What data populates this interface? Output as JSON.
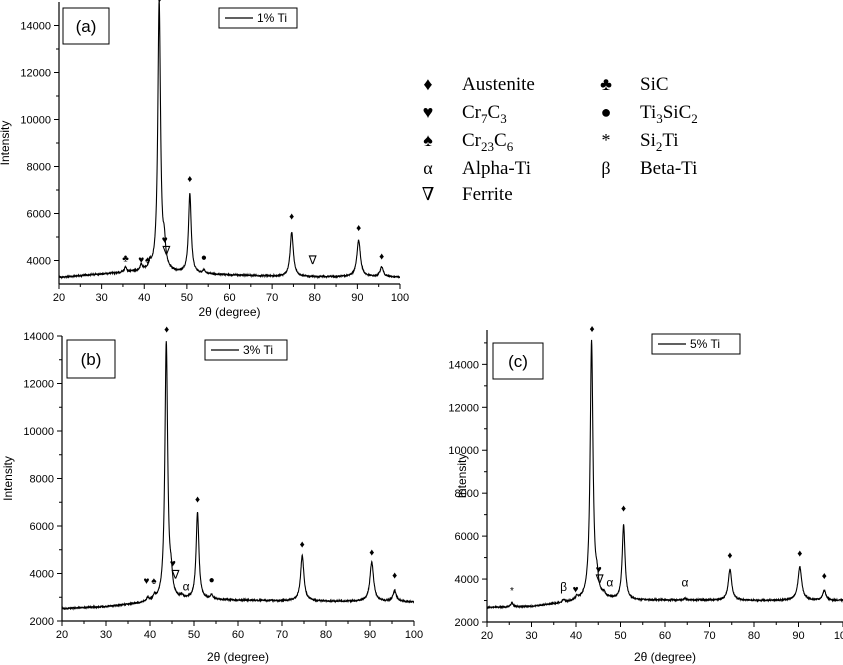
{
  "legend_key": {
    "entries": [
      {
        "symbol": "♦",
        "label": "Austenite"
      },
      {
        "symbol": "♣",
        "label": "SiC"
      },
      {
        "symbol": "♥",
        "label": "Cr",
        "sub1": "7",
        "label2": "C",
        "sub2": "3"
      },
      {
        "symbol": "●",
        "label": "Ti",
        "sub1": "3",
        "label2": "SiC",
        "sub2": "2"
      },
      {
        "symbol": "♠",
        "label": "Cr",
        "sub1": "23",
        "label2": "C",
        "sub2": "6"
      },
      {
        "symbol": "*",
        "label": "Si",
        "sub1": "2",
        "label2": "Ti",
        "sub2": ""
      },
      {
        "symbol": "α",
        "label": "Alpha-Ti"
      },
      {
        "symbol": "β",
        "label": "Beta-Ti"
      },
      {
        "symbol": "∇",
        "label": "Ferrite"
      }
    ]
  },
  "chart_data": [
    {
      "type": "line",
      "panel_label": "(a)",
      "series": [
        {
          "name": "1% Ti"
        }
      ],
      "xlabel": "2θ (degree)",
      "ylabel": "Intensity",
      "xlim": [
        20,
        100
      ],
      "ylim": [
        3000,
        15000
      ],
      "xticks": [
        20,
        30,
        40,
        50,
        60,
        70,
        80,
        90,
        100
      ],
      "yticks": [
        4000,
        6000,
        8000,
        10000,
        12000,
        14000
      ],
      "baseline": [
        [
          20,
          3280
        ],
        [
          30,
          3420
        ],
        [
          40,
          3540
        ],
        [
          50,
          3440
        ],
        [
          60,
          3380
        ],
        [
          70,
          3330
        ],
        [
          80,
          3300
        ],
        [
          90,
          3310
        ],
        [
          100,
          3290
        ]
      ],
      "peaks": [
        {
          "x": 35.6,
          "h": 220,
          "w": 0.3
        },
        {
          "x": 39.3,
          "h": 230,
          "w": 0.3
        },
        {
          "x": 41.3,
          "h": 260,
          "w": 0.3
        },
        {
          "x": 43.5,
          "h": 11500,
          "w": 0.38
        },
        {
          "x": 44.7,
          "h": 900,
          "w": 0.35
        },
        {
          "x": 50.7,
          "h": 3400,
          "w": 0.38
        },
        {
          "x": 54.0,
          "h": 150,
          "w": 0.3
        },
        {
          "x": 74.6,
          "h": 1880,
          "w": 0.45
        },
        {
          "x": 90.3,
          "h": 1550,
          "w": 0.5
        },
        {
          "x": 95.7,
          "h": 420,
          "w": 0.45
        }
      ],
      "markers": [
        {
          "x": 35.6,
          "y": 3950,
          "symbol": "♣"
        },
        {
          "x": 39.3,
          "y": 3900,
          "symbol": "♥"
        },
        {
          "x": 40.8,
          "y": 3900,
          "symbol": "♠"
        },
        {
          "x": 43.6,
          "y": 15000,
          "symbol": "♦"
        },
        {
          "x": 44.8,
          "y": 4750,
          "symbol": "♥"
        },
        {
          "x": 45.2,
          "y": 4250,
          "symbol": "∇"
        },
        {
          "x": 50.7,
          "y": 7350,
          "symbol": "♦"
        },
        {
          "x": 54.0,
          "y": 4000,
          "symbol": "●"
        },
        {
          "x": 74.6,
          "y": 5750,
          "symbol": "♦"
        },
        {
          "x": 79.5,
          "y": 3850,
          "symbol": "∇"
        },
        {
          "x": 90.3,
          "y": 5250,
          "symbol": "♦"
        },
        {
          "x": 95.7,
          "y": 4050,
          "symbol": "♦"
        }
      ]
    },
    {
      "type": "line",
      "panel_label": "(b)",
      "series": [
        {
          "name": "3% Ti"
        }
      ],
      "xlabel": "2θ (degree)",
      "ylabel": "Intensity",
      "xlim": [
        20,
        100
      ],
      "ylim": [
        2000,
        14000
      ],
      "xticks": [
        20,
        30,
        40,
        50,
        60,
        70,
        80,
        90,
        100
      ],
      "yticks": [
        2000,
        4000,
        6000,
        8000,
        10000,
        12000,
        14000
      ],
      "baseline": [
        [
          20,
          2520
        ],
        [
          30,
          2600
        ],
        [
          40,
          2780
        ],
        [
          50,
          2900
        ],
        [
          60,
          2870
        ],
        [
          70,
          2850
        ],
        [
          80,
          2830
        ],
        [
          90,
          2820
        ],
        [
          100,
          2810
        ]
      ],
      "peaks": [
        {
          "x": 39.5,
          "h": 150,
          "w": 0.3
        },
        {
          "x": 41.0,
          "h": 180,
          "w": 0.3
        },
        {
          "x": 43.7,
          "h": 10900,
          "w": 0.38
        },
        {
          "x": 44.8,
          "h": 750,
          "w": 0.35
        },
        {
          "x": 47.2,
          "h": 120,
          "w": 0.3
        },
        {
          "x": 50.8,
          "h": 3650,
          "w": 0.38
        },
        {
          "x": 54.0,
          "h": 200,
          "w": 0.3
        },
        {
          "x": 74.6,
          "h": 1900,
          "w": 0.45
        },
        {
          "x": 90.4,
          "h": 1650,
          "w": 0.5
        },
        {
          "x": 95.6,
          "h": 450,
          "w": 0.45
        }
      ],
      "markers": [
        {
          "x": 39.2,
          "y": 3550,
          "symbol": "♥"
        },
        {
          "x": 40.9,
          "y": 3550,
          "symbol": "♠"
        },
        {
          "x": 43.8,
          "y": 14150,
          "symbol": "♦"
        },
        {
          "x": 45.2,
          "y": 4300,
          "symbol": "♥"
        },
        {
          "x": 45.8,
          "y": 3800,
          "symbol": "∇"
        },
        {
          "x": 48.2,
          "y": 3280,
          "symbol": "α"
        },
        {
          "x": 50.8,
          "y": 7000,
          "symbol": "♦"
        },
        {
          "x": 54.0,
          "y": 3600,
          "symbol": "●"
        },
        {
          "x": 74.6,
          "y": 5100,
          "symbol": "♦"
        },
        {
          "x": 90.4,
          "y": 4750,
          "symbol": "♦"
        },
        {
          "x": 95.6,
          "y": 3780,
          "symbol": "♦"
        }
      ]
    },
    {
      "type": "line",
      "panel_label": "(c)",
      "series": [
        {
          "name": "5% Ti"
        }
      ],
      "xlabel": "2θ (degree)",
      "ylabel": "Intensity",
      "xlim": [
        20,
        100
      ],
      "ylim": [
        2000,
        15600
      ],
      "xticks": [
        20,
        30,
        40,
        50,
        60,
        70,
        80,
        90,
        100
      ],
      "yticks": [
        2000,
        4000,
        6000,
        8000,
        10000,
        12000,
        14000
      ],
      "baseline": [
        [
          20,
          2680
        ],
        [
          30,
          2720
        ],
        [
          40,
          2950
        ],
        [
          45,
          3100
        ],
        [
          50,
          3000
        ],
        [
          60,
          3020
        ],
        [
          70,
          3020
        ],
        [
          80,
          3000
        ],
        [
          90,
          3010
        ],
        [
          100,
          3000
        ]
      ],
      "peaks": [
        {
          "x": 25.6,
          "h": 180,
          "w": 0.3
        },
        {
          "x": 37.2,
          "h": 130,
          "w": 0.3
        },
        {
          "x": 40.2,
          "h": 160,
          "w": 0.3
        },
        {
          "x": 43.5,
          "h": 12000,
          "w": 0.38
        },
        {
          "x": 44.7,
          "h": 650,
          "w": 0.35
        },
        {
          "x": 46.3,
          "h": 150,
          "w": 0.3
        },
        {
          "x": 50.7,
          "h": 3500,
          "w": 0.38
        },
        {
          "x": 64.5,
          "h": 80,
          "w": 0.3
        },
        {
          "x": 74.6,
          "h": 1450,
          "w": 0.45
        },
        {
          "x": 90.3,
          "h": 1550,
          "w": 0.5
        },
        {
          "x": 95.8,
          "h": 450,
          "w": 0.45
        }
      ],
      "markers": [
        {
          "x": 25.6,
          "y": 3300,
          "symbol": "*"
        },
        {
          "x": 37.2,
          "y": 3450,
          "symbol": "β"
        },
        {
          "x": 39.9,
          "y": 3380,
          "symbol": "♥"
        },
        {
          "x": 43.6,
          "y": 15500,
          "symbol": "♦"
        },
        {
          "x": 45.1,
          "y": 4300,
          "symbol": "♥"
        },
        {
          "x": 45.3,
          "y": 3820,
          "symbol": "∇"
        },
        {
          "x": 47.6,
          "y": 3650,
          "symbol": "α"
        },
        {
          "x": 50.7,
          "y": 7150,
          "symbol": "♦"
        },
        {
          "x": 64.5,
          "y": 3650,
          "symbol": "α"
        },
        {
          "x": 74.6,
          "y": 4950,
          "symbol": "♦"
        },
        {
          "x": 90.3,
          "y": 5050,
          "symbol": "♦"
        },
        {
          "x": 95.8,
          "y": 4000,
          "symbol": "♦"
        }
      ]
    }
  ]
}
